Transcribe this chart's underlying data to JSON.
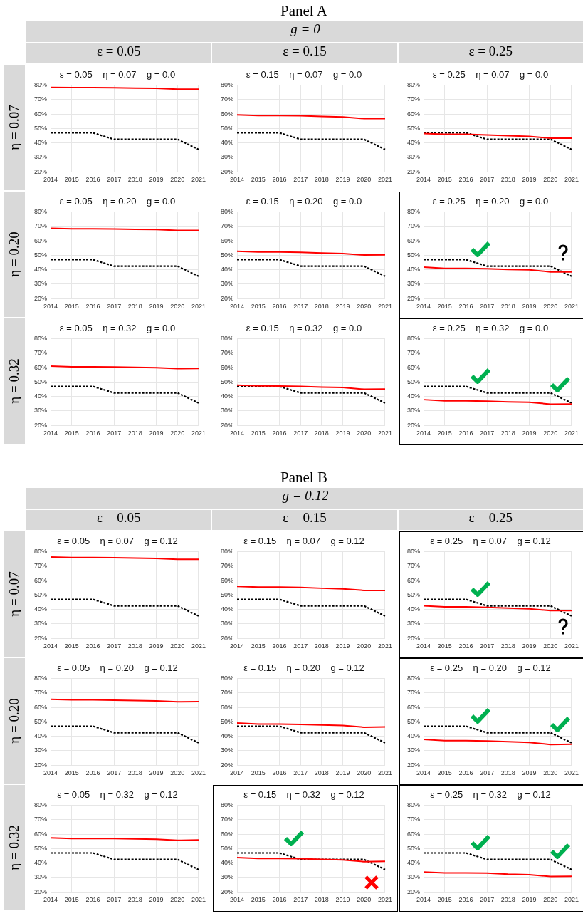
{
  "chart_data": [
    {
      "type": "other",
      "title": "Panel A",
      "subtitle": "g = 0",
      "annotations": [
        "ε = 0.05",
        "ε = 0.15",
        "ε = 0.25",
        "η = 0.07",
        "η = 0.20",
        "η = 0.32"
      ]
    },
    {
      "type": "line",
      "title": "ε = 0.05    η = 0.07    g = 0.0",
      "categories": [
        "2014",
        "2015",
        "2016",
        "2017",
        "2018",
        "2019",
        "2020",
        "2021"
      ],
      "ylim": [
        20,
        80
      ],
      "yticks": [
        {
          "value": 20,
          "label": "20%"
        },
        {
          "value": 30,
          "label": "30%"
        },
        {
          "value": 40,
          "label": "40%"
        },
        {
          "value": 50,
          "label": "50%"
        },
        {
          "value": 60,
          "label": "60%"
        },
        {
          "value": 70,
          "label": "70%"
        },
        {
          "value": 80,
          "label": "80%"
        }
      ],
      "grid": true,
      "marker": "none",
      "series": [
        {
          "color": "#ff0000",
          "line_style": "solid",
          "values": [
            78.5,
            78.3,
            78.3,
            78.2,
            78,
            77.8,
            77.2,
            77.2
          ]
        },
        {
          "color": "#000000",
          "line_style": "dotted",
          "values": [
            47,
            47,
            47,
            42.5,
            42.5,
            42.5,
            42.5,
            35.5
          ]
        }
      ]
    },
    {
      "type": "line",
      "title": "ε = 0.15    η = 0.07    g = 0.0",
      "categories": [
        "2014",
        "2015",
        "2016",
        "2017",
        "2018",
        "2019",
        "2020",
        "2021"
      ],
      "ylim": [
        20,
        80
      ],
      "yticks": [
        {
          "value": 20,
          "label": "20%"
        },
        {
          "value": 30,
          "label": "30%"
        },
        {
          "value": 40,
          "label": "40%"
        },
        {
          "value": 50,
          "label": "50%"
        },
        {
          "value": 60,
          "label": "60%"
        },
        {
          "value": 70,
          "label": "70%"
        },
        {
          "value": 80,
          "label": "80%"
        }
      ],
      "grid": true,
      "marker": "none",
      "series": [
        {
          "color": "#ff0000",
          "line_style": "solid",
          "values": [
            59.5,
            59,
            59,
            58.8,
            58.3,
            58,
            56.8,
            56.8
          ]
        },
        {
          "color": "#000000",
          "line_style": "dotted",
          "values": [
            47,
            47,
            47,
            42.5,
            42.5,
            42.5,
            42.5,
            35.5
          ]
        }
      ]
    },
    {
      "type": "line",
      "title": "ε = 0.25    η = 0.07    g = 0.0",
      "categories": [
        "2014",
        "2015",
        "2016",
        "2017",
        "2018",
        "2019",
        "2020",
        "2021"
      ],
      "ylim": [
        20,
        80
      ],
      "yticks": [
        {
          "value": 20,
          "label": "20%"
        },
        {
          "value": 30,
          "label": "30%"
        },
        {
          "value": 40,
          "label": "40%"
        },
        {
          "value": 50,
          "label": "50%"
        },
        {
          "value": 60,
          "label": "60%"
        },
        {
          "value": 70,
          "label": "70%"
        },
        {
          "value": 80,
          "label": "80%"
        }
      ],
      "grid": true,
      "marker": "none",
      "series": [
        {
          "color": "#ff0000",
          "line_style": "solid",
          "values": [
            46.5,
            46,
            46,
            45.5,
            45,
            44.5,
            43.3,
            43.3
          ]
        },
        {
          "color": "#000000",
          "line_style": "dotted",
          "values": [
            47,
            47,
            47,
            42.5,
            42.5,
            42.5,
            42.5,
            35.5
          ]
        }
      ]
    },
    {
      "type": "line",
      "title": "ε = 0.05    η = 0.20    g = 0.0",
      "categories": [
        "2014",
        "2015",
        "2016",
        "2017",
        "2018",
        "2019",
        "2020",
        "2021"
      ],
      "ylim": [
        20,
        80
      ],
      "yticks": [
        {
          "value": 20,
          "label": "20%"
        },
        {
          "value": 30,
          "label": "30%"
        },
        {
          "value": 40,
          "label": "40%"
        },
        {
          "value": 50,
          "label": "50%"
        },
        {
          "value": 60,
          "label": "60%"
        },
        {
          "value": 70,
          "label": "70%"
        },
        {
          "value": 80,
          "label": "80%"
        }
      ],
      "grid": true,
      "marker": "none",
      "series": [
        {
          "color": "#ff0000",
          "line_style": "solid",
          "values": [
            68.7,
            68.3,
            68.3,
            68.2,
            68,
            67.8,
            67.2,
            67.2
          ]
        },
        {
          "color": "#000000",
          "line_style": "dotted",
          "values": [
            47,
            47,
            47,
            42.5,
            42.5,
            42.5,
            42.5,
            35.5
          ]
        }
      ]
    },
    {
      "type": "line",
      "title": "ε = 0.15    η = 0.20    g = 0.0",
      "categories": [
        "2014",
        "2015",
        "2016",
        "2017",
        "2018",
        "2019",
        "2020",
        "2021"
      ],
      "ylim": [
        20,
        80
      ],
      "yticks": [
        {
          "value": 20,
          "label": "20%"
        },
        {
          "value": 30,
          "label": "30%"
        },
        {
          "value": 40,
          "label": "40%"
        },
        {
          "value": 50,
          "label": "50%"
        },
        {
          "value": 60,
          "label": "60%"
        },
        {
          "value": 70,
          "label": "70%"
        },
        {
          "value": 80,
          "label": "80%"
        }
      ],
      "grid": true,
      "marker": "none",
      "series": [
        {
          "color": "#ff0000",
          "line_style": "solid",
          "values": [
            52.8,
            52.3,
            52.3,
            52,
            51.5,
            51.2,
            50.2,
            50.3
          ]
        },
        {
          "color": "#000000",
          "line_style": "dotted",
          "values": [
            47,
            47,
            47,
            42.5,
            42.5,
            42.5,
            42.5,
            35.5
          ]
        }
      ]
    },
    {
      "type": "line",
      "title": "ε = 0.25    η = 0.20    g = 0.0",
      "categories": [
        "2014",
        "2015",
        "2016",
        "2017",
        "2018",
        "2019",
        "2020",
        "2021"
      ],
      "ylim": [
        20,
        80
      ],
      "yticks": [
        {
          "value": 20,
          "label": "20%"
        },
        {
          "value": 30,
          "label": "30%"
        },
        {
          "value": 40,
          "label": "40%"
        },
        {
          "value": 50,
          "label": "50%"
        },
        {
          "value": 60,
          "label": "60%"
        },
        {
          "value": 70,
          "label": "70%"
        },
        {
          "value": 80,
          "label": "80%"
        }
      ],
      "grid": true,
      "marker": "none",
      "series": [
        {
          "color": "#ff0000",
          "line_style": "solid",
          "values": [
            41.8,
            41,
            41,
            40.7,
            40.2,
            40,
            38.5,
            38.5
          ]
        },
        {
          "color": "#000000",
          "line_style": "dotted",
          "values": [
            47,
            47,
            47,
            42.5,
            42.5,
            42.5,
            42.5,
            35.5
          ]
        }
      ]
    },
    {
      "type": "line",
      "title": "ε = 0.05    η = 0.32    g = 0.0",
      "categories": [
        "2014",
        "2015",
        "2016",
        "2017",
        "2018",
        "2019",
        "2020",
        "2021"
      ],
      "ylim": [
        20,
        80
      ],
      "yticks": [
        {
          "value": 20,
          "label": "20%"
        },
        {
          "value": 30,
          "label": "30%"
        },
        {
          "value": 40,
          "label": "40%"
        },
        {
          "value": 50,
          "label": "50%"
        },
        {
          "value": 60,
          "label": "60%"
        },
        {
          "value": 70,
          "label": "70%"
        },
        {
          "value": 80,
          "label": "80%"
        }
      ],
      "grid": true,
      "marker": "none",
      "series": [
        {
          "color": "#ff0000",
          "line_style": "solid",
          "values": [
            61,
            60.5,
            60.5,
            60.4,
            60.2,
            60,
            59.3,
            59.4
          ]
        },
        {
          "color": "#000000",
          "line_style": "dotted",
          "values": [
            47,
            47,
            47,
            42.5,
            42.5,
            42.5,
            42.5,
            35.5
          ]
        }
      ]
    },
    {
      "type": "line",
      "title": "ε = 0.15    η = 0.32    g = 0.0",
      "categories": [
        "2014",
        "2015",
        "2016",
        "2017",
        "2018",
        "2019",
        "2020",
        "2021"
      ],
      "ylim": [
        20,
        80
      ],
      "yticks": [
        {
          "value": 20,
          "label": "20%"
        },
        {
          "value": 30,
          "label": "30%"
        },
        {
          "value": 40,
          "label": "40%"
        },
        {
          "value": 50,
          "label": "50%"
        },
        {
          "value": 60,
          "label": "60%"
        },
        {
          "value": 70,
          "label": "70%"
        },
        {
          "value": 80,
          "label": "80%"
        }
      ],
      "grid": true,
      "marker": "none",
      "series": [
        {
          "color": "#ff0000",
          "line_style": "solid",
          "values": [
            47.8,
            47.3,
            47.2,
            47,
            46.5,
            46.2,
            45,
            45.2
          ]
        },
        {
          "color": "#000000",
          "line_style": "dotted",
          "values": [
            47,
            47,
            47,
            42.5,
            42.5,
            42.5,
            42.5,
            35.5
          ]
        }
      ]
    },
    {
      "type": "line",
      "title": "ε = 0.25    η = 0.32    g = 0.0",
      "categories": [
        "2014",
        "2015",
        "2016",
        "2017",
        "2018",
        "2019",
        "2020",
        "2021"
      ],
      "ylim": [
        20,
        80
      ],
      "yticks": [
        {
          "value": 20,
          "label": "20%"
        },
        {
          "value": 30,
          "label": "30%"
        },
        {
          "value": 40,
          "label": "40%"
        },
        {
          "value": 50,
          "label": "50%"
        },
        {
          "value": 60,
          "label": "60%"
        },
        {
          "value": 70,
          "label": "70%"
        },
        {
          "value": 80,
          "label": "80%"
        }
      ],
      "grid": true,
      "marker": "none",
      "series": [
        {
          "color": "#ff0000",
          "line_style": "solid",
          "values": [
            37.8,
            37,
            37,
            36.8,
            36.3,
            36,
            34.7,
            34.8
          ]
        },
        {
          "color": "#000000",
          "line_style": "dotted",
          "values": [
            47,
            47,
            47,
            42.5,
            42.5,
            42.5,
            42.5,
            35.5
          ]
        }
      ]
    },
    {
      "type": "other",
      "title": "Panel B",
      "subtitle": "g = 0.12",
      "annotations": [
        "ε = 0.05",
        "ε = 0.15",
        "ε = 0.25",
        "η = 0.07",
        "η = 0.20",
        "η = 0.32"
      ]
    },
    {
      "type": "line",
      "title": "ε = 0.05    η = 0.07    g = 0.12",
      "categories": [
        "2014",
        "2015",
        "2016",
        "2017",
        "2018",
        "2019",
        "2020",
        "2021"
      ],
      "ylim": [
        20,
        80
      ],
      "yticks": [
        {
          "value": 20,
          "label": "20%"
        },
        {
          "value": 30,
          "label": "30%"
        },
        {
          "value": 40,
          "label": "40%"
        },
        {
          "value": 50,
          "label": "50%"
        },
        {
          "value": 60,
          "label": "60%"
        },
        {
          "value": 70,
          "label": "70%"
        },
        {
          "value": 80,
          "label": "80%"
        }
      ],
      "grid": true,
      "marker": "none",
      "series": [
        {
          "color": "#ff0000",
          "line_style": "solid",
          "values": [
            76.3,
            76,
            76,
            75.8,
            75.6,
            75.4,
            74.8,
            74.8
          ]
        },
        {
          "color": "#000000",
          "line_style": "dotted",
          "values": [
            47,
            47,
            47,
            42.5,
            42.5,
            42.5,
            42.5,
            35.5
          ]
        }
      ]
    },
    {
      "type": "line",
      "title": "ε = 0.15    η = 0.07    g = 0.12",
      "categories": [
        "2014",
        "2015",
        "2016",
        "2017",
        "2018",
        "2019",
        "2020",
        "2021"
      ],
      "ylim": [
        20,
        80
      ],
      "yticks": [
        {
          "value": 20,
          "label": "20%"
        },
        {
          "value": 30,
          "label": "30%"
        },
        {
          "value": 40,
          "label": "40%"
        },
        {
          "value": 50,
          "label": "50%"
        },
        {
          "value": 60,
          "label": "60%"
        },
        {
          "value": 70,
          "label": "70%"
        },
        {
          "value": 80,
          "label": "80%"
        }
      ],
      "grid": true,
      "marker": "none",
      "series": [
        {
          "color": "#ff0000",
          "line_style": "solid",
          "values": [
            56,
            55.5,
            55.5,
            55.2,
            54.7,
            54.3,
            53.2,
            53.2
          ]
        },
        {
          "color": "#000000",
          "line_style": "dotted",
          "values": [
            47,
            47,
            47,
            42.5,
            42.5,
            42.5,
            42.5,
            35.5
          ]
        }
      ]
    },
    {
      "type": "line",
      "title": "ε = 0.25    η = 0.07    g = 0.12",
      "categories": [
        "2014",
        "2015",
        "2016",
        "2017",
        "2018",
        "2019",
        "2020",
        "2021"
      ],
      "ylim": [
        20,
        80
      ],
      "yticks": [
        {
          "value": 20,
          "label": "20%"
        },
        {
          "value": 30,
          "label": "30%"
        },
        {
          "value": 40,
          "label": "40%"
        },
        {
          "value": 50,
          "label": "50%"
        },
        {
          "value": 60,
          "label": "60%"
        },
        {
          "value": 70,
          "label": "70%"
        },
        {
          "value": 80,
          "label": "80%"
        }
      ],
      "grid": true,
      "marker": "none",
      "series": [
        {
          "color": "#ff0000",
          "line_style": "solid",
          "values": [
            42.5,
            41.8,
            41.8,
            41.5,
            41,
            40.5,
            39.2,
            39.2
          ]
        },
        {
          "color": "#000000",
          "line_style": "dotted",
          "values": [
            47,
            47,
            47,
            42.5,
            42.5,
            42.5,
            42.5,
            35.5
          ]
        }
      ]
    },
    {
      "type": "line",
      "title": "ε = 0.05    η = 0.20    g = 0.12",
      "categories": [
        "2014",
        "2015",
        "2016",
        "2017",
        "2018",
        "2019",
        "2020",
        "2021"
      ],
      "ylim": [
        20,
        80
      ],
      "yticks": [
        {
          "value": 20,
          "label": "20%"
        },
        {
          "value": 30,
          "label": "30%"
        },
        {
          "value": 40,
          "label": "40%"
        },
        {
          "value": 50,
          "label": "50%"
        },
        {
          "value": 60,
          "label": "60%"
        },
        {
          "value": 70,
          "label": "70%"
        },
        {
          "value": 80,
          "label": "80%"
        }
      ],
      "grid": true,
      "marker": "none",
      "series": [
        {
          "color": "#ff0000",
          "line_style": "solid",
          "values": [
            65.6,
            65.2,
            65.2,
            65,
            64.7,
            64.5,
            63.9,
            64
          ]
        },
        {
          "color": "#000000",
          "line_style": "dotted",
          "values": [
            47,
            47,
            47,
            42.5,
            42.5,
            42.5,
            42.5,
            35.5
          ]
        }
      ]
    },
    {
      "type": "line",
      "title": "ε = 0.15    η = 0.20    g = 0.12",
      "categories": [
        "2014",
        "2015",
        "2016",
        "2017",
        "2018",
        "2019",
        "2020",
        "2021"
      ],
      "ylim": [
        20,
        80
      ],
      "yticks": [
        {
          "value": 20,
          "label": "20%"
        },
        {
          "value": 30,
          "label": "30%"
        },
        {
          "value": 40,
          "label": "40%"
        },
        {
          "value": 50,
          "label": "50%"
        },
        {
          "value": 60,
          "label": "60%"
        },
        {
          "value": 70,
          "label": "70%"
        },
        {
          "value": 80,
          "label": "80%"
        }
      ],
      "grid": true,
      "marker": "none",
      "series": [
        {
          "color": "#ff0000",
          "line_style": "solid",
          "values": [
            49.2,
            48.5,
            48.5,
            48.2,
            47.8,
            47.5,
            46.3,
            46.5
          ]
        },
        {
          "color": "#000000",
          "line_style": "dotted",
          "values": [
            47,
            47,
            47,
            42.5,
            42.5,
            42.5,
            42.5,
            35.5
          ]
        }
      ]
    },
    {
      "type": "line",
      "title": "ε = 0.25    η = 0.20    g = 0.12",
      "categories": [
        "2014",
        "2015",
        "2016",
        "2017",
        "2018",
        "2019",
        "2020",
        "2021"
      ],
      "ylim": [
        20,
        80
      ],
      "yticks": [
        {
          "value": 20,
          "label": "20%"
        },
        {
          "value": 30,
          "label": "30%"
        },
        {
          "value": 40,
          "label": "40%"
        },
        {
          "value": 50,
          "label": "50%"
        },
        {
          "value": 60,
          "label": "60%"
        },
        {
          "value": 70,
          "label": "70%"
        },
        {
          "value": 80,
          "label": "80%"
        }
      ],
      "grid": true,
      "marker": "none",
      "series": [
        {
          "color": "#ff0000",
          "line_style": "solid",
          "values": [
            37.8,
            37,
            37,
            36.8,
            36.2,
            35.8,
            34.3,
            34.5
          ]
        },
        {
          "color": "#000000",
          "line_style": "dotted",
          "values": [
            47,
            47,
            47,
            42.5,
            42.5,
            42.5,
            42.5,
            35.5
          ]
        }
      ]
    },
    {
      "type": "line",
      "title": "ε = 0.05    η = 0.32    g = 0.12",
      "categories": [
        "2014",
        "2015",
        "2016",
        "2017",
        "2018",
        "2019",
        "2020",
        "2021"
      ],
      "ylim": [
        20,
        80
      ],
      "yticks": [
        {
          "value": 20,
          "label": "20%"
        },
        {
          "value": 30,
          "label": "30%"
        },
        {
          "value": 40,
          "label": "40%"
        },
        {
          "value": 50,
          "label": "50%"
        },
        {
          "value": 60,
          "label": "60%"
        },
        {
          "value": 70,
          "label": "70%"
        },
        {
          "value": 80,
          "label": "80%"
        }
      ],
      "grid": true,
      "marker": "none",
      "series": [
        {
          "color": "#ff0000",
          "line_style": "solid",
          "values": [
            57.5,
            57,
            57,
            57,
            56.7,
            56.5,
            55.7,
            56
          ]
        },
        {
          "color": "#000000",
          "line_style": "dotted",
          "values": [
            47,
            47,
            47,
            42.5,
            42.5,
            42.5,
            42.5,
            35.5
          ]
        }
      ]
    },
    {
      "type": "line",
      "title": "ε = 0.15    η = 0.32    g = 0.12",
      "categories": [
        "2014",
        "2015",
        "2016",
        "2017",
        "2018",
        "2019",
        "2020",
        "2021"
      ],
      "ylim": [
        20,
        80
      ],
      "yticks": [
        {
          "value": 20,
          "label": "20%"
        },
        {
          "value": 30,
          "label": "30%"
        },
        {
          "value": 40,
          "label": "40%"
        },
        {
          "value": 50,
          "label": "50%"
        },
        {
          "value": 60,
          "label": "60%"
        },
        {
          "value": 70,
          "label": "70%"
        },
        {
          "value": 80,
          "label": "80%"
        }
      ],
      "grid": true,
      "marker": "none",
      "series": [
        {
          "color": "#ff0000",
          "line_style": "solid",
          "values": [
            43.8,
            43.2,
            43.2,
            43,
            42.5,
            42.2,
            41,
            41.2
          ]
        },
        {
          "color": "#000000",
          "line_style": "dotted",
          "values": [
            47,
            47,
            47,
            42.5,
            42.5,
            42.5,
            42.5,
            35.5
          ]
        }
      ]
    },
    {
      "type": "line",
      "title": "ε = 0.25    η = 0.32    g = 0.12",
      "categories": [
        "2014",
        "2015",
        "2016",
        "2017",
        "2018",
        "2019",
        "2020",
        "2021"
      ],
      "ylim": [
        20,
        80
      ],
      "yticks": [
        {
          "value": 20,
          "label": "20%"
        },
        {
          "value": 30,
          "label": "30%"
        },
        {
          "value": 40,
          "label": "40%"
        },
        {
          "value": 50,
          "label": "50%"
        },
        {
          "value": 60,
          "label": "60%"
        },
        {
          "value": 70,
          "label": "70%"
        },
        {
          "value": 80,
          "label": "80%"
        }
      ],
      "grid": true,
      "marker": "none",
      "series": [
        {
          "color": "#ff0000",
          "line_style": "solid",
          "values": [
            33.8,
            33.2,
            33.2,
            33,
            32.3,
            32,
            30.7,
            30.8
          ]
        },
        {
          "color": "#000000",
          "line_style": "dotted",
          "values": [
            47,
            47,
            47,
            42.5,
            42.5,
            42.5,
            42.5,
            35.5
          ]
        }
      ]
    }
  ]
}
